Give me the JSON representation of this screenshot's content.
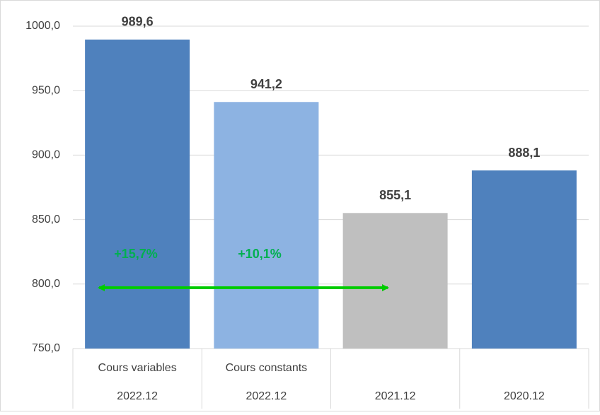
{
  "chart_data": {
    "type": "bar",
    "category_groups": [
      "Cours variables",
      "Cours constants",
      null,
      null
    ],
    "categories": [
      "2022.12",
      "2022.12",
      "2021.12",
      "2020.12"
    ],
    "values": [
      989.6,
      941.2,
      855.1,
      888.1
    ],
    "value_labels": [
      "989,6",
      "941,2",
      "855,1",
      "888,1"
    ],
    "colors": [
      "#4f81bd",
      "#8db3e2",
      "#bfbfbf",
      "#4f81bd"
    ],
    "ylim": [
      750,
      1000
    ],
    "yticks": [
      {
        "value": 750,
        "label": "750,0"
      },
      {
        "value": 800,
        "label": "800,0"
      },
      {
        "value": 850,
        "label": "850,0"
      },
      {
        "value": 900,
        "label": "900,0"
      },
      {
        "value": 950,
        "label": "950,0"
      },
      {
        "value": 1000,
        "label": "1000,0"
      }
    ],
    "grid": true,
    "annotations": [
      "+15,7%",
      "+10,1%"
    ]
  }
}
